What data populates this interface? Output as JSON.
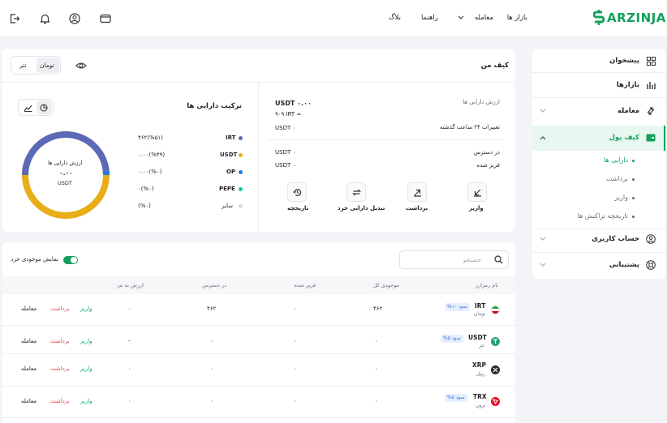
{
  "brand": {
    "name": "ARZINJA"
  },
  "topnav": {
    "markets": "بازار ها",
    "trade": "معامله",
    "guide": "راهنما",
    "blog": "بلاگ"
  },
  "sidebar": {
    "dashboard": "پیشخوان",
    "markets": "بازارها",
    "trade": "معامله",
    "wallet": "کیف پول",
    "sub": [
      "دارایی ها",
      "برداشت",
      "واریز",
      "تاریخچه تراکنش ها"
    ],
    "account": "حساب کاربری",
    "support": "پشتیبانی"
  },
  "wallet": {
    "title": "کیف من",
    "currency_toggle": {
      "toman": "تومان",
      "tether": "تتر"
    },
    "asset_value_label": "ارزش دارایی ها",
    "asset_value": "USDT ۰.۰۰",
    "asset_value_irt": "۹۰۹ IRT ≈",
    "change_label": "تغییرات ۲۴ ساعت گذشته",
    "change_value": "USDT ۰",
    "available_label": "در دسترس",
    "available_value": "USDT ۰",
    "frozen_label": "فریز شده",
    "frozen_value": "USDT ۰",
    "actions": {
      "deposit": "واریز",
      "withdraw": "برداشت",
      "convert": "تبدیل دارایی خرد",
      "history": "تاریخچه"
    }
  },
  "composition": {
    "title": "ترکیب دارایی ها",
    "donut_label": "ارزش دارایی ها",
    "donut_value": "۰.۰۰",
    "donut_unit": "USDT",
    "items": [
      {
        "name": "IRT",
        "value": "۴۶۲(%۵۱)",
        "color": "#5b6ab8"
      },
      {
        "name": "USDT",
        "value": "۰.۰۰(%۴۹)",
        "color": "#e8ad17"
      },
      {
        "name": "OP",
        "value": "۰.۰۰(%۰)",
        "color": "#1e7fd9"
      },
      {
        "name": "PEPE",
        "value": "۰(%۰)",
        "color": "#18c3a4"
      },
      {
        "name": "سایر",
        "value": "(%۰)",
        "color": "#d8dbe0"
      }
    ]
  },
  "assets": {
    "search_placeholder": "جستجو",
    "show_small_label": "نمایش موجودی خرد",
    "columns": [
      "نام رمزارز",
      "موجودی کل",
      "فریز شده",
      "در دسترس",
      "ارزش به تتر"
    ],
    "actions": {
      "deposit": "واریز",
      "withdraw": "برداشت",
      "trade": "معامله"
    },
    "rows": [
      {
        "symbol": "IRT",
        "name": "تومان",
        "badge": "سود ۱۰%",
        "total": "۴۶۲",
        "frozen": "۰",
        "available": "۴۶۲",
        "usdt": "۰",
        "coin_color": "#ffffff"
      },
      {
        "symbol": "USDT",
        "name": "تتر",
        "badge": "سود ۵%",
        "total": "۰",
        "frozen": "۰",
        "available": "۰",
        "usdt": "-",
        "coin_color": "#26a17b"
      },
      {
        "symbol": "XRP",
        "name": "ریپل",
        "badge": "",
        "total": "۰",
        "frozen": "۰",
        "available": "۰",
        "usdt": "۰",
        "coin_color": "#23292f"
      },
      {
        "symbol": "TRX",
        "name": "ترون",
        "badge": "سود ۵%",
        "total": "۰",
        "frozen": "۰",
        "available": "۰",
        "usdt": "۰",
        "coin_color": "#e5102d"
      }
    ]
  },
  "colors": {
    "brand_green": "#12a05c",
    "danger_red": "#e5484d",
    "irt_slice": "#5b6ab8",
    "usdt_slice": "#e8ad17"
  }
}
